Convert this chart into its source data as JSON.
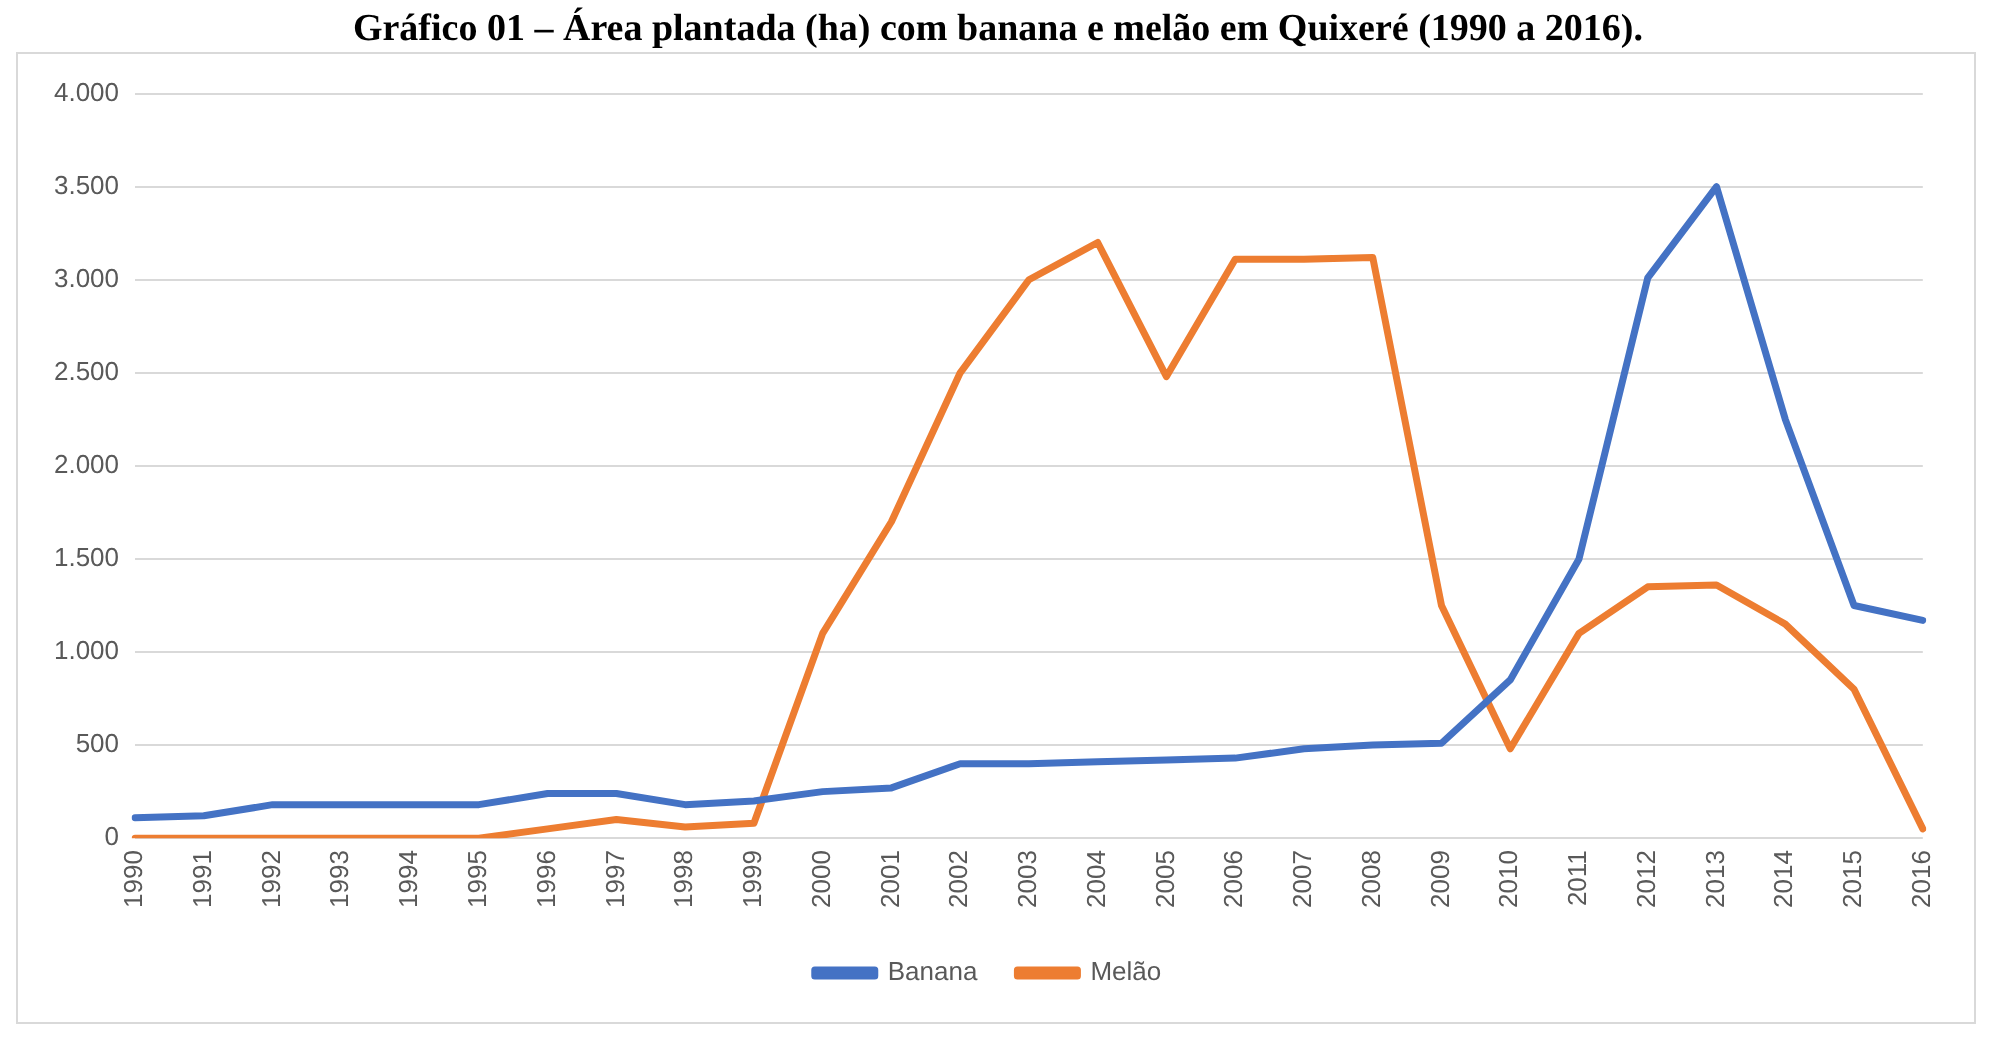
{
  "chart_data": {
    "type": "line",
    "title": "Gráfico 01 – Área plantada (ha) com banana e melão em Quixeré (1990 a 2016).",
    "categories": [
      "1990",
      "1991",
      "1992",
      "1993",
      "1994",
      "1995",
      "1996",
      "1997",
      "1998",
      "1999",
      "2000",
      "2001",
      "2002",
      "2003",
      "2004",
      "2005",
      "2006",
      "2007",
      "2008",
      "2009",
      "2010",
      "2011",
      "2012",
      "2013",
      "2014",
      "2015",
      "2016"
    ],
    "series": [
      {
        "name": "Banana",
        "color": "#4472c4",
        "values": [
          110,
          120,
          180,
          180,
          180,
          180,
          240,
          240,
          180,
          200,
          250,
          270,
          400,
          400,
          410,
          420,
          430,
          480,
          500,
          510,
          850,
          1500,
          3010,
          3500,
          2250,
          1250,
          1170
        ]
      },
      {
        "name": "Melão",
        "color": "#ed7d31",
        "values": [
          0,
          0,
          0,
          0,
          0,
          0,
          50,
          100,
          60,
          80,
          1100,
          1700,
          2500,
          3000,
          3200,
          2480,
          3110,
          3110,
          3120,
          1250,
          480,
          1100,
          1350,
          1360,
          1150,
          800,
          50
        ]
      }
    ],
    "ylim": [
      0,
      4000
    ],
    "yticks": [
      {
        "value": 0,
        "label": "0"
      },
      {
        "value": 500,
        "label": "500"
      },
      {
        "value": 1000,
        "label": "1.000"
      },
      {
        "value": 1500,
        "label": "1.500"
      },
      {
        "value": 2000,
        "label": "2.000"
      },
      {
        "value": 2500,
        "label": "2.500"
      },
      {
        "value": 3000,
        "label": "3.000"
      },
      {
        "value": 3500,
        "label": "3.500"
      },
      {
        "value": 4000,
        "label": "4.000"
      }
    ],
    "grid": "y",
    "legend": "bottom",
    "marker": "none",
    "line_style": "solid"
  }
}
